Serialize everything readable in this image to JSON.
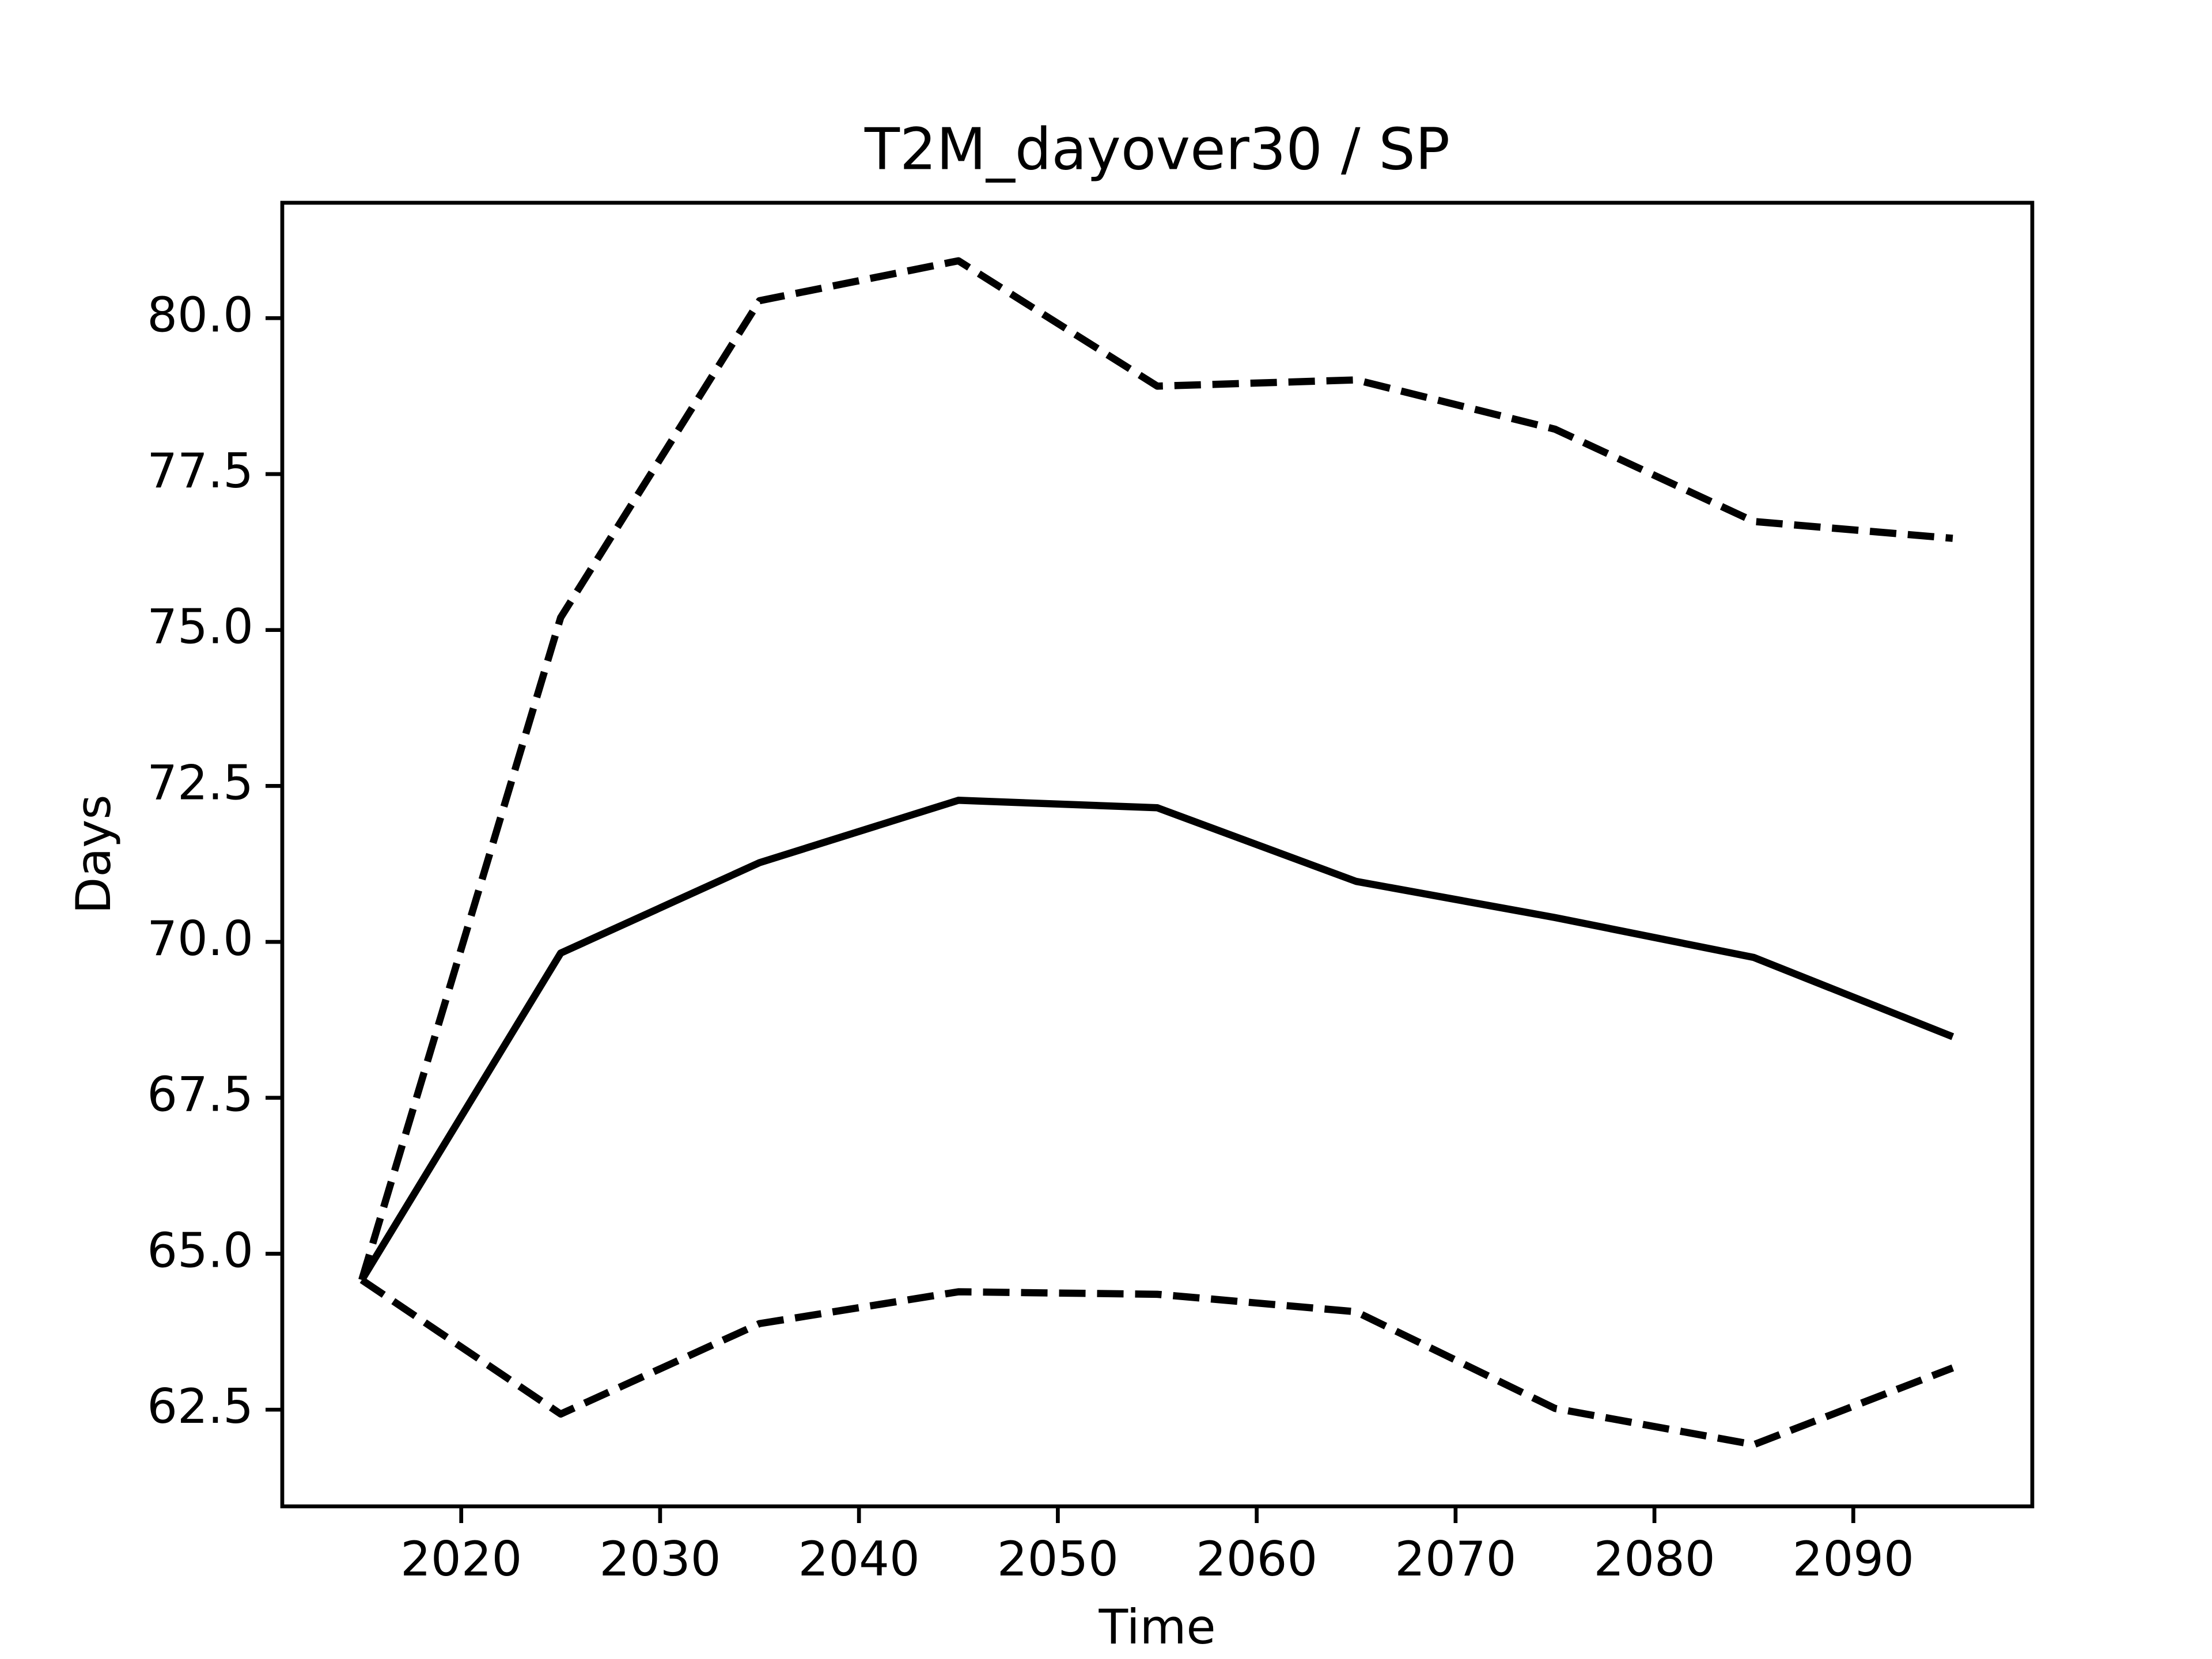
{
  "chart_data": {
    "type": "line",
    "title": "T2M_dayover30 / SP",
    "x_label": "Time",
    "y_label": "Days",
    "x": [
      2015,
      2025,
      2035,
      2045,
      2055,
      2065,
      2075,
      2085,
      2095
    ],
    "series": [
      {
        "color": "#000000",
        "style": "solid",
        "values": [
          64.58,
          69.82,
          71.27,
          72.27,
          72.15,
          70.97,
          70.39,
          69.75,
          68.48
        ]
      },
      {
        "color": "#000000",
        "style": "dashed",
        "values": [
          64.58,
          75.2,
          80.28,
          80.92,
          78.91,
          79.01,
          78.22,
          76.74,
          76.47
        ]
      },
      {
        "color": "#000000",
        "style": "dashed",
        "values": [
          64.58,
          62.43,
          63.88,
          64.39,
          64.35,
          64.07,
          62.52,
          61.94,
          63.17
        ]
      }
    ],
    "xlim": [
      2011,
      2099
    ],
    "xticks": [
      2020,
      2030,
      2040,
      2050,
      2060,
      2070,
      2080,
      2090
    ],
    "ylim": [
      60.95,
      81.85
    ],
    "yticks": [
      {
        "value": 62.5,
        "label": "62.5"
      },
      {
        "value": 65,
        "label": "65.0"
      },
      {
        "value": 67.5,
        "label": "67.5"
      },
      {
        "value": 70,
        "label": "70.0"
      },
      {
        "value": 72.5,
        "label": "72.5"
      },
      {
        "value": 75,
        "label": "75.0"
      },
      {
        "value": 77.5,
        "label": "77.5"
      },
      {
        "value": 80,
        "label": "80.0"
      }
    ],
    "grid": false
  }
}
